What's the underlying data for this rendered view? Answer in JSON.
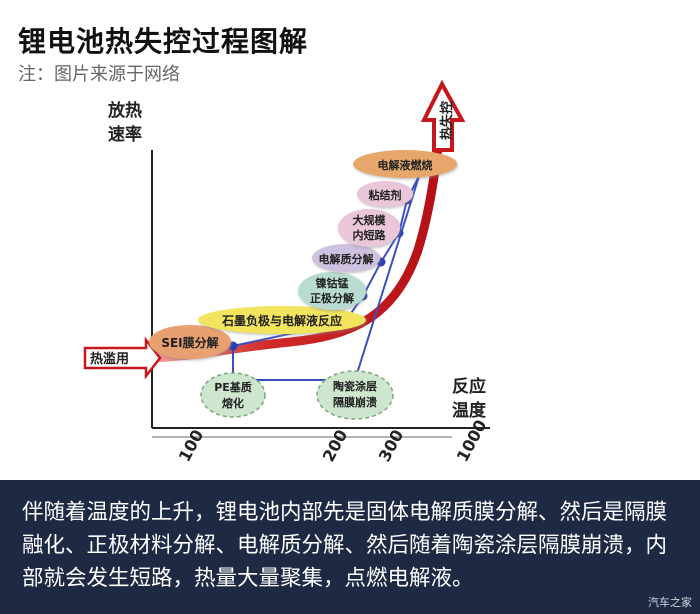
{
  "header": {
    "title": "锂电池热失控过程图解",
    "subtitle": "注：图片来源于网络"
  },
  "diagram": {
    "y_axis_label": [
      "放热",
      "速率"
    ],
    "x_axis_label": [
      "反应",
      "温度"
    ],
    "x_ticks": [
      "100",
      "200",
      "300",
      "1000"
    ],
    "start_label": "热滥用",
    "end_label": "热失控",
    "stages": [
      {
        "text": [
          "SEI膜分解"
        ],
        "color": "#e8a070"
      },
      {
        "text": [
          "石墨负极与电解液反应"
        ],
        "color": "#f2e45c"
      },
      {
        "text": [
          "镍钴锰",
          "正极分解"
        ],
        "color": "#b9dcd2"
      },
      {
        "text": [
          "电解质分解"
        ],
        "color": "#cfc2e0"
      },
      {
        "text": [
          "大规模",
          "内短路"
        ],
        "color": "#e9c6d9"
      },
      {
        "text": [
          "粘结剂"
        ],
        "color": "#e9c6d9"
      },
      {
        "text": [
          "电解液燃烧"
        ],
        "color": "#e7a66a"
      }
    ],
    "separator_nodes": [
      {
        "text": [
          "PE基质",
          "熔化"
        ],
        "color": "#cfe6ce"
      },
      {
        "text": [
          "陶瓷涂层",
          "隔膜崩溃"
        ],
        "color": "#cfe6ce"
      }
    ]
  },
  "caption": {
    "text": "伴随着温度的上升，锂电池内部先是固体电解质膜分解、然后是隔膜融化、正极材料分解、电解质分解、然后随着陶瓷涂层隔膜崩溃，内部就会发生短路，热量大量聚集，点燃电解液。"
  },
  "watermark": "汽车之家",
  "colors": {
    "curve": "#c8161d",
    "connector": "#3a4fc0",
    "band": "#1e2a43"
  }
}
